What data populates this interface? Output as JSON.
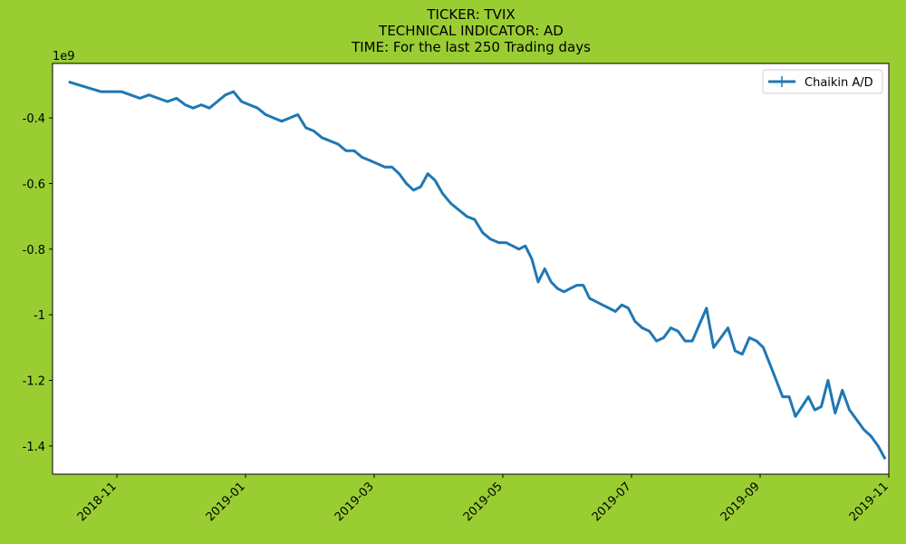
{
  "chart_data": {
    "type": "line",
    "title": [
      "TICKER:  TVIX",
      "TECHNICAL INDICATOR:  AD",
      "TIME: For the last 250 Trading days"
    ],
    "y_offset_label": "1e9",
    "legend": "upper right",
    "x": [
      "2018-10",
      "2018-10",
      "2018-11",
      "2018-11",
      "2018-11",
      "2018-11",
      "2018-11",
      "2018-11",
      "2018-11",
      "2018-12",
      "2018-12",
      "2018-12",
      "2018-12",
      "2018-12",
      "2018-12",
      "2018-12",
      "2018-12",
      "2019-01",
      "2019-01",
      "2019-01",
      "2019-01",
      "2019-01",
      "2019-01",
      "2019-01",
      "2019-01",
      "2019-02",
      "2019-02",
      "2019-02",
      "2019-02",
      "2019-02",
      "2019-02",
      "2019-02",
      "2019-02",
      "2019-03",
      "2019-03",
      "2019-03",
      "2019-03",
      "2019-03",
      "2019-03",
      "2019-03",
      "2019-03",
      "2019-03",
      "2019-04",
      "2019-04",
      "2019-04",
      "2019-04",
      "2019-04",
      "2019-04",
      "2019-04",
      "2019-04",
      "2019-05",
      "2019-05",
      "2019-05",
      "2019-05",
      "2019-05",
      "2019-05",
      "2019-05",
      "2019-05",
      "2019-05",
      "2019-05",
      "2019-06",
      "2019-06",
      "2019-06",
      "2019-06",
      "2019-06",
      "2019-06",
      "2019-06",
      "2019-06",
      "2019-06",
      "2019-06",
      "2019-07",
      "2019-07",
      "2019-07",
      "2019-07",
      "2019-07",
      "2019-07",
      "2019-07",
      "2019-07",
      "2019-07",
      "2019-08",
      "2019-08",
      "2019-08",
      "2019-08",
      "2019-08",
      "2019-08",
      "2019-08",
      "2019-08",
      "2019-08",
      "2019-09",
      "2019-09",
      "2019-09",
      "2019-09",
      "2019-09",
      "2019-09",
      "2019-09",
      "2019-09",
      "2019-09",
      "2019-09",
      "2019-10",
      "2019-10",
      "2019-10",
      "2019-10",
      "2019-10",
      "2019-10",
      "2019-10",
      "2019-10",
      "2019-10"
    ],
    "series": [
      {
        "name": "Chaikin A/D",
        "color": "#1f77b4",
        "values": [
          -0.29,
          -0.32,
          -0.32,
          -0.33,
          -0.34,
          -0.33,
          -0.34,
          -0.35,
          -0.34,
          -0.36,
          -0.37,
          -0.36,
          -0.37,
          -0.35,
          -0.33,
          -0.32,
          -0.35,
          -0.36,
          -0.37,
          -0.39,
          -0.4,
          -0.41,
          -0.4,
          -0.39,
          -0.43,
          -0.44,
          -0.46,
          -0.47,
          -0.48,
          -0.5,
          -0.5,
          -0.52,
          -0.53,
          -0.54,
          -0.55,
          -0.55,
          -0.57,
          -0.6,
          -0.62,
          -0.61,
          -0.57,
          -0.59,
          -0.63,
          -0.66,
          -0.68,
          -0.7,
          -0.71,
          -0.75,
          -0.77,
          -0.78,
          -0.78,
          -0.79,
          -0.8,
          -0.79,
          -0.83,
          -0.9,
          -0.86,
          -0.9,
          -0.92,
          -0.93,
          -0.92,
          -0.91,
          -0.91,
          -0.95,
          -0.96,
          -0.97,
          -0.98,
          -0.99,
          -0.97,
          -0.98,
          -1.02,
          -1.04,
          -1.05,
          -1.08,
          -1.07,
          -1.04,
          -1.05,
          -1.08,
          -1.08,
          -1.03,
          -0.98,
          -1.1,
          -1.07,
          -1.04,
          -1.11,
          -1.12,
          -1.07,
          -1.08,
          -1.1,
          -1.15,
          -1.2,
          -1.25,
          -1.25,
          -1.31,
          -1.28,
          -1.25,
          -1.29,
          -1.28,
          -1.2,
          -1.3,
          -1.23,
          -1.29,
          -1.32,
          -1.35,
          -1.37,
          -1.4,
          -1.44
        ]
      }
    ],
    "xlim": [
      "2018-10",
      "2019-11"
    ],
    "xticks": [
      "2018-11",
      "2019-01",
      "2019-03",
      "2019-05",
      "2019-07",
      "2019-09",
      "2019-11"
    ],
    "ylim": [
      -1.486,
      -0.234
    ],
    "yticks": [
      -1.4,
      -1.2,
      -1.0,
      -0.8,
      -0.6,
      -0.4
    ]
  }
}
